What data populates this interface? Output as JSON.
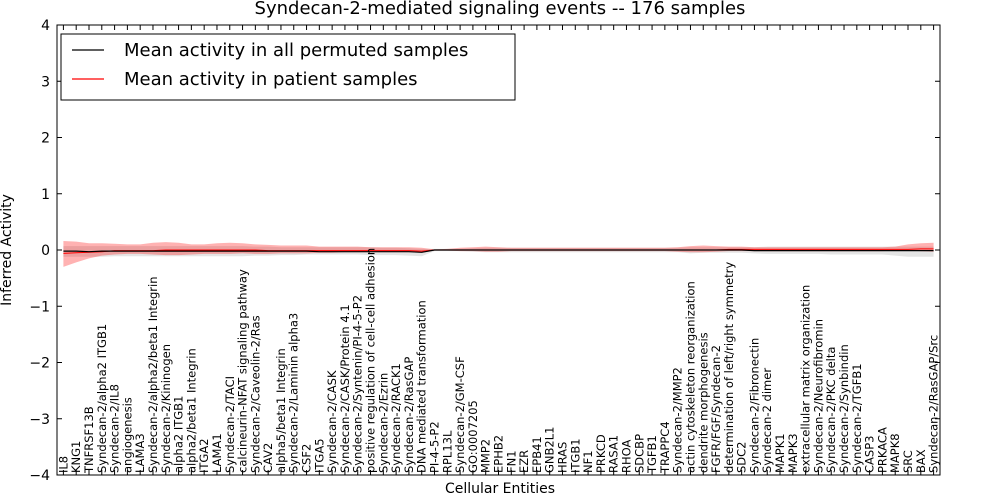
{
  "chart_data": {
    "type": "line",
    "title": "Syndecan-2-mediated signaling events -- 176 samples",
    "xlabel": "Cellular Entities",
    "ylabel": "Inferred Activity",
    "ylim": [
      -4,
      4
    ],
    "yticks": [
      -4,
      -3,
      -2,
      -1,
      0,
      1,
      2,
      3,
      4
    ],
    "ytick_labels": [
      "−4",
      "−3",
      "−2",
      "−1",
      "0",
      "1",
      "2",
      "3",
      "4"
    ],
    "legend_location": "upper-left",
    "categories": [
      "IL8",
      "KNG1",
      "TNFRSF13B",
      "Syndecan-2/alpha2 ITGB1",
      "Syndecan-2/IL8",
      "angiogenesis",
      "LAMA3",
      "Syndecan-2/alpha2/beta1 Integrin",
      "Syndecan-2/Kininogen",
      "alpha2 ITGB1",
      "alpha2/beta1 Integrin",
      "ITGA2",
      "LAMA1",
      "Syndecan-2/TACI",
      "calcineurin-NFAT signaling pathway",
      "Syndecan-2/Caveolin-2/Ras",
      "CAV2",
      "alpha5/beta1 Integrin",
      "Syndecan-2/Laminin alpha3",
      "CSF2",
      "ITGA5",
      "Syndecan-2/CASK",
      "Syndecan-2/CASK/Protein 4.1",
      "Syndecan-2/Syntenin/PI-4-5-P2",
      "positive regulation of cell-cell adhesion",
      "Syndecan-2/Ezrin",
      "Syndecan-2/RACK1",
      "Syndecan-2/RasGAP",
      "DNA mediated transformation",
      "PI-4-5-P2",
      "RPL13L",
      "Syndecan-2/GM-CSF",
      "GO:0007205",
      "MMP2",
      "EPHB2",
      "FN1",
      "EZR",
      "EPB41",
      "GNB2L1",
      "HRAS",
      "ITGB1",
      "NF1",
      "PRKCD",
      "RASA1",
      "RHOA",
      "SDCBP",
      "TGFB1",
      "TRAPPC4",
      "Syndecan-2/MMP2",
      "actin cytoskeleton reorganization",
      "dendrite morphogenesis",
      "FGFR/FGF/Syndecan-2",
      "determination of left/right symmetry",
      "SDC2",
      "Syndecan-2/Fibronectin",
      "Syndecan-2 dimer",
      "MAPK1",
      "MAPK3",
      "extracellular matrix organization",
      "Syndecan-2/Neurofibromin",
      "Syndecan-2/PKC delta",
      "Syndecan-2/Synbindin",
      "Syndecan-2/TGFB1",
      "CASP3",
      "PRKACA",
      "MAPK8",
      "SRC",
      "BAX",
      "Syndecan-2/RasGAP/Src"
    ],
    "series": [
      {
        "name": "Mean activity in all permuted samples",
        "color": "#000000",
        "values": [
          -0.02,
          -0.02,
          -0.03,
          -0.02,
          -0.02,
          -0.02,
          -0.02,
          -0.02,
          -0.02,
          -0.02,
          -0.02,
          -0.02,
          -0.02,
          -0.02,
          -0.02,
          -0.02,
          -0.02,
          -0.02,
          -0.02,
          -0.02,
          -0.03,
          -0.03,
          -0.03,
          -0.03,
          -0.03,
          -0.03,
          -0.03,
          -0.03,
          -0.04,
          0.0,
          0.0,
          0.0,
          0.0,
          0.0,
          0.0,
          0.0,
          0.0,
          0.0,
          0.0,
          0.0,
          0.0,
          0.0,
          0.0,
          0.0,
          0.0,
          0.0,
          0.0,
          0.0,
          0.0,
          0.0,
          0.0,
          0.0,
          0.0,
          0.0,
          -0.01,
          -0.01,
          -0.01,
          -0.01,
          -0.01,
          -0.01,
          -0.01,
          -0.01,
          -0.01,
          -0.01,
          -0.01,
          -0.01,
          -0.01,
          -0.01,
          -0.01
        ],
        "lower": [
          -0.12,
          -0.12,
          -0.12,
          -0.12,
          -0.11,
          -0.11,
          -0.11,
          -0.11,
          -0.11,
          -0.11,
          -0.11,
          -0.11,
          -0.11,
          -0.11,
          -0.11,
          -0.1,
          -0.1,
          -0.09,
          -0.09,
          -0.08,
          -0.08,
          -0.08,
          -0.08,
          -0.08,
          -0.09,
          -0.09,
          -0.09,
          -0.1,
          -0.11,
          -0.02,
          -0.02,
          -0.02,
          -0.03,
          -0.04,
          -0.04,
          -0.04,
          -0.04,
          -0.04,
          -0.04,
          -0.04,
          -0.04,
          -0.04,
          -0.04,
          -0.04,
          -0.04,
          -0.04,
          -0.04,
          -0.04,
          -0.04,
          -0.06,
          -0.05,
          -0.05,
          -0.05,
          -0.05,
          -0.06,
          -0.07,
          -0.07,
          -0.07,
          -0.07,
          -0.07,
          -0.08,
          -0.08,
          -0.08,
          -0.08,
          -0.08,
          -0.1,
          -0.12,
          -0.12,
          -0.12
        ],
        "upper": [
          0.07,
          0.07,
          0.07,
          0.07,
          0.07,
          0.07,
          0.07,
          0.07,
          0.07,
          0.07,
          0.07,
          0.07,
          0.07,
          0.07,
          0.07,
          0.06,
          0.06,
          0.05,
          0.05,
          0.05,
          0.05,
          0.05,
          0.05,
          0.05,
          0.05,
          0.04,
          0.04,
          0.03,
          0.02,
          0.02,
          0.02,
          0.02,
          0.03,
          0.04,
          0.04,
          0.04,
          0.04,
          0.04,
          0.04,
          0.04,
          0.04,
          0.04,
          0.04,
          0.04,
          0.04,
          0.04,
          0.04,
          0.04,
          0.04,
          0.05,
          0.05,
          0.05,
          0.05,
          0.05,
          0.05,
          0.06,
          0.06,
          0.06,
          0.06,
          0.06,
          0.06,
          0.06,
          0.06,
          0.06,
          0.06,
          0.06,
          0.06,
          0.06,
          0.06
        ]
      },
      {
        "name": "Mean activity in patient samples",
        "color": "#ff0000",
        "values": [
          -0.06,
          -0.05,
          -0.04,
          -0.03,
          -0.01,
          -0.01,
          -0.01,
          -0.01,
          0.0,
          0.0,
          0.0,
          0.0,
          0.0,
          0.0,
          0.0,
          0.0,
          -0.01,
          -0.01,
          -0.01,
          -0.01,
          -0.01,
          -0.01,
          -0.01,
          -0.01,
          -0.01,
          -0.01,
          -0.01,
          -0.01,
          -0.02,
          0.0,
          0.0,
          0.0,
          0.0,
          0.0,
          0.0,
          0.0,
          0.0,
          0.0,
          0.0,
          0.0,
          0.0,
          0.0,
          0.0,
          0.0,
          0.0,
          0.0,
          0.0,
          0.0,
          0.0,
          0.0,
          0.0,
          0.0,
          0.01,
          0.01,
          0.01,
          0.01,
          0.01,
          0.01,
          0.01,
          0.01,
          0.01,
          0.01,
          0.01,
          0.01,
          0.01,
          0.01,
          0.01,
          0.02,
          0.02
        ],
        "lower": [
          -0.3,
          -0.22,
          -0.15,
          -0.1,
          -0.08,
          -0.07,
          -0.07,
          -0.08,
          -0.09,
          -0.09,
          -0.08,
          -0.07,
          -0.07,
          -0.07,
          -0.06,
          -0.07,
          -0.07,
          -0.06,
          -0.06,
          -0.06,
          -0.05,
          -0.05,
          -0.04,
          -0.04,
          -0.04,
          -0.04,
          -0.04,
          -0.04,
          -0.05,
          -0.01,
          -0.01,
          -0.02,
          -0.02,
          -0.03,
          -0.03,
          -0.02,
          -0.02,
          -0.02,
          -0.02,
          -0.02,
          -0.02,
          -0.02,
          -0.02,
          -0.02,
          -0.02,
          -0.02,
          -0.02,
          -0.02,
          -0.03,
          -0.04,
          -0.04,
          -0.03,
          -0.02,
          -0.02,
          -0.02,
          -0.02,
          -0.02,
          -0.02,
          -0.02,
          -0.02,
          -0.02,
          -0.02,
          -0.02,
          -0.02,
          -0.02,
          -0.01,
          -0.01,
          -0.02,
          -0.03
        ],
        "upper": [
          0.16,
          0.15,
          0.12,
          0.12,
          0.11,
          0.1,
          0.1,
          0.13,
          0.14,
          0.13,
          0.1,
          0.1,
          0.12,
          0.13,
          0.12,
          0.1,
          0.09,
          0.08,
          0.08,
          0.08,
          0.06,
          0.06,
          0.06,
          0.06,
          0.05,
          0.05,
          0.05,
          0.05,
          0.04,
          0.01,
          0.02,
          0.04,
          0.05,
          0.06,
          0.05,
          0.04,
          0.04,
          0.04,
          0.04,
          0.04,
          0.04,
          0.04,
          0.04,
          0.04,
          0.04,
          0.04,
          0.04,
          0.04,
          0.05,
          0.07,
          0.08,
          0.07,
          0.06,
          0.06,
          0.05,
          0.05,
          0.05,
          0.05,
          0.05,
          0.05,
          0.05,
          0.05,
          0.05,
          0.05,
          0.05,
          0.06,
          0.1,
          0.12,
          0.13
        ]
      }
    ]
  }
}
